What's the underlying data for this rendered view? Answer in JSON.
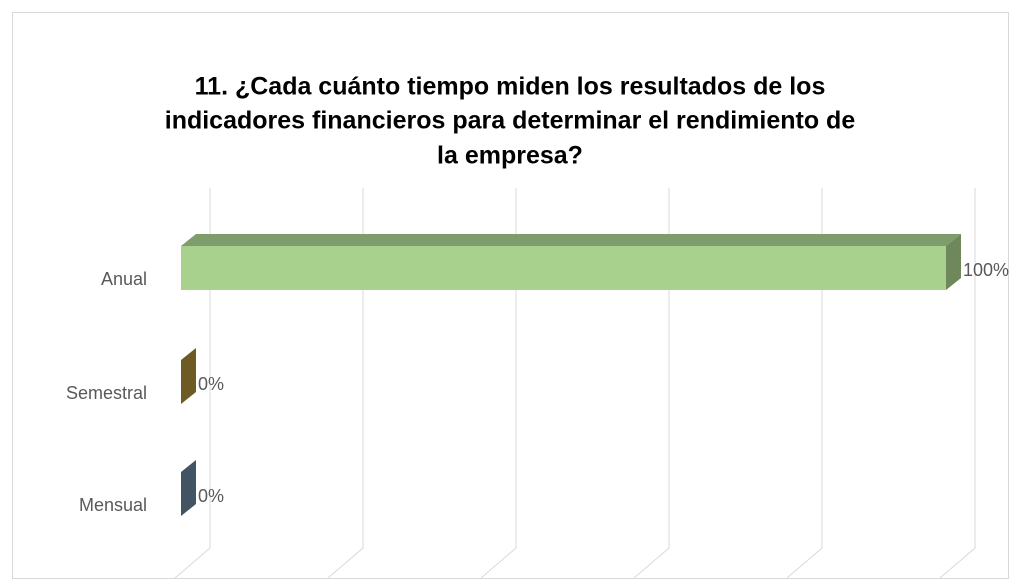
{
  "chart_data": {
    "type": "bar3d_horizontal",
    "title": [
      "11. ¿Cada cuánto tiempo miden los resultados de los",
      "indicadores financieros para determinar el rendimiento de",
      "la empresa?"
    ],
    "categories": [
      "Anual",
      "Semestral",
      "Mensual"
    ],
    "values": [
      100,
      0,
      0
    ],
    "value_labels": [
      "100%",
      "0%",
      "0%"
    ],
    "colors": [
      "#a9d18e",
      "#a88b38",
      "#667f9a"
    ],
    "xlim": [
      0,
      100
    ],
    "xticks": [
      0,
      20,
      40,
      60,
      80,
      100
    ],
    "grid": true
  }
}
